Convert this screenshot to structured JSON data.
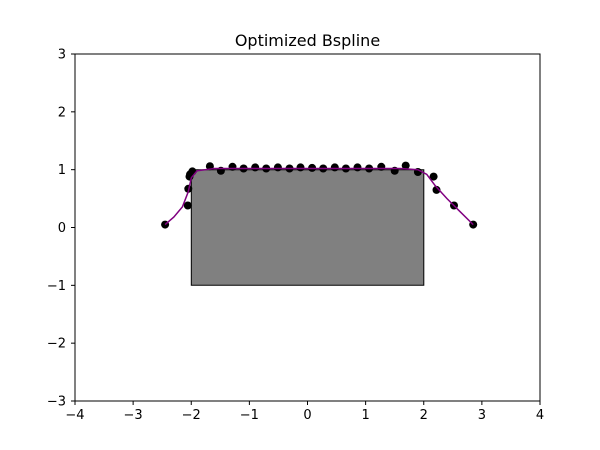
{
  "chart_data": {
    "type": "scatter",
    "title": "Optimized Bspline",
    "xlabel": "",
    "ylabel": "",
    "xlim": [
      -4,
      4
    ],
    "ylim": [
      -3,
      3
    ],
    "xticks": [
      -4,
      -3,
      -2,
      -1,
      0,
      1,
      2,
      3,
      4
    ],
    "yticks": [
      -3,
      -2,
      -1,
      0,
      1,
      2,
      3
    ],
    "xtick_labels": [
      "−4",
      "−3",
      "−2",
      "−1",
      "0",
      "1",
      "2",
      "3",
      "4"
    ],
    "ytick_labels": [
      "−3",
      "−2",
      "−1",
      "0",
      "1",
      "2",
      "3"
    ],
    "grid": false,
    "obstacle": {
      "x": [
        -2,
        2,
        2,
        -2
      ],
      "y": [
        -1,
        -1,
        1,
        1
      ],
      "fill": "#808080",
      "edge": "#000000"
    },
    "control_points": {
      "color": "#000000",
      "x": [
        -2.45,
        -2.06,
        -2.05,
        -2.03,
        -2.02,
        -1.98,
        -1.68,
        -1.49,
        -1.29,
        -1.1,
        -0.9,
        -0.71,
        -0.51,
        -0.31,
        -0.12,
        0.08,
        0.27,
        0.47,
        0.66,
        0.86,
        1.06,
        1.27,
        1.5,
        1.69,
        1.9,
        2.17,
        2.22,
        2.52,
        2.85
      ],
      "y": [
        0.05,
        0.38,
        0.67,
        0.88,
        0.92,
        0.97,
        1.06,
        0.98,
        1.05,
        1.02,
        1.04,
        1.02,
        1.04,
        1.02,
        1.04,
        1.03,
        1.02,
        1.04,
        1.02,
        1.04,
        1.02,
        1.05,
        0.98,
        1.07,
        0.96,
        0.88,
        0.65,
        0.38,
        0.05
      ]
    },
    "spline": {
      "color": "#800080",
      "x": [
        -2.45,
        -2.3,
        -2.15,
        -2.05,
        -2.0,
        -1.9,
        -1.6,
        -1.2,
        -0.8,
        -0.4,
        0.0,
        0.4,
        0.8,
        1.2,
        1.6,
        1.9,
        2.05,
        2.2,
        2.4,
        2.6,
        2.85
      ],
      "y": [
        0.05,
        0.18,
        0.36,
        0.62,
        0.86,
        0.98,
        1.02,
        1.02,
        1.02,
        1.02,
        1.02,
        1.02,
        1.02,
        1.02,
        1.02,
        1.0,
        0.92,
        0.72,
        0.5,
        0.3,
        0.05
      ]
    }
  }
}
